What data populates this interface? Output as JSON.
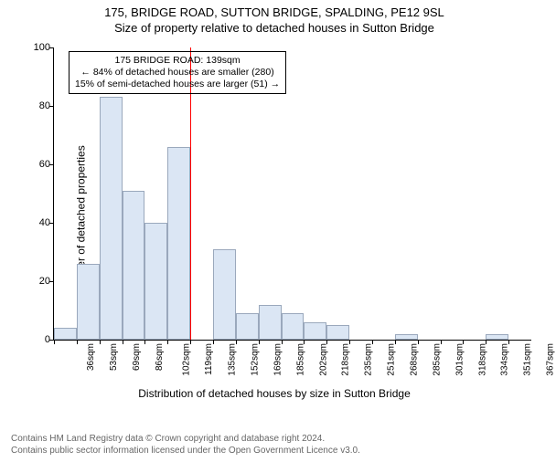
{
  "title": "175, BRIDGE ROAD, SUTTON BRIDGE, SPALDING, PE12 9SL",
  "subtitle": "Size of property relative to detached houses in Sutton Bridge",
  "ylabel": "Number of detached properties",
  "xlabel": "Distribution of detached houses by size in Sutton Bridge",
  "chart": {
    "type": "histogram",
    "ylim": [
      0,
      100
    ],
    "ytick_step": 20,
    "yticks": [
      0,
      20,
      40,
      60,
      80,
      100
    ],
    "categories": [
      "36sqm",
      "53sqm",
      "69sqm",
      "86sqm",
      "102sqm",
      "119sqm",
      "135sqm",
      "152sqm",
      "169sqm",
      "185sqm",
      "202sqm",
      "218sqm",
      "235sqm",
      "251sqm",
      "268sqm",
      "285sqm",
      "301sqm",
      "318sqm",
      "334sqm",
      "351sqm",
      "367sqm"
    ],
    "values": [
      4,
      26,
      83,
      51,
      40,
      66,
      0,
      31,
      9,
      12,
      9,
      6,
      5,
      0,
      0,
      2,
      0,
      0,
      0,
      2,
      0
    ],
    "bar_fill": "#dbe6f4",
    "bar_border": "#9aa8bc",
    "marker_color": "#ff0000",
    "marker_index": 6,
    "background_color": "#ffffff"
  },
  "annotation": {
    "line1": "175 BRIDGE ROAD: 139sqm",
    "line2": "← 84% of detached houses are smaller (280)",
    "line3": "15% of semi-detached houses are larger (51) →"
  },
  "footer": {
    "line1": "Contains HM Land Registry data © Crown copyright and database right 2024.",
    "line2": "Contains public sector information licensed under the Open Government Licence v3.0."
  }
}
